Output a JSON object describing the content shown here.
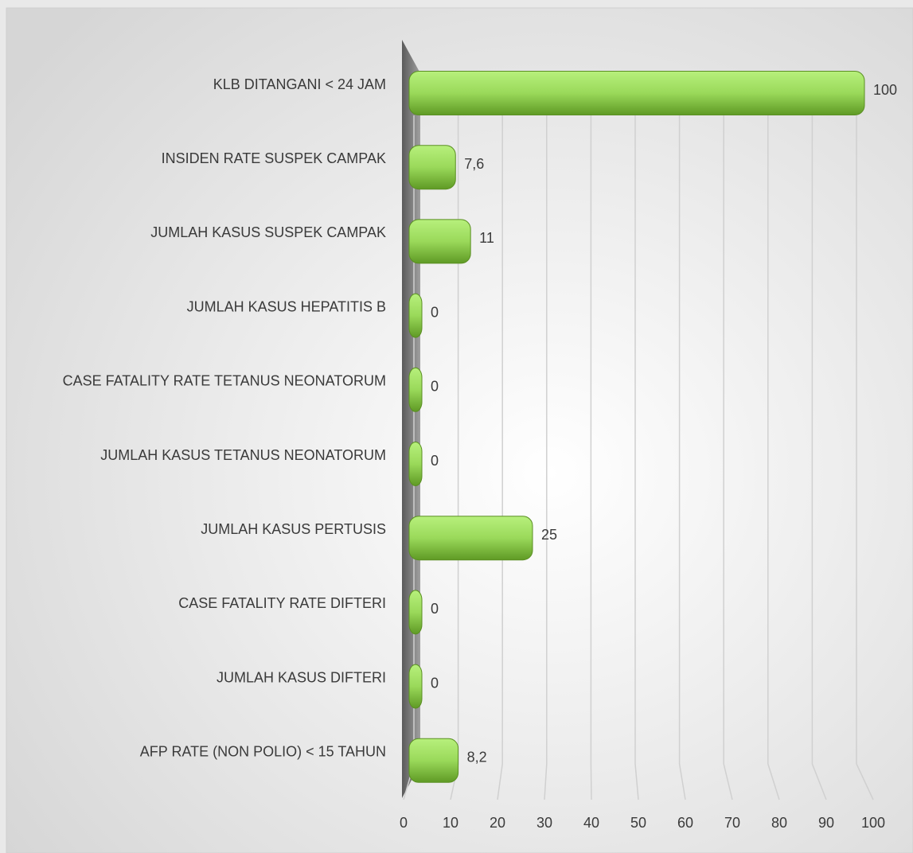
{
  "chart_data": {
    "type": "bar",
    "orientation": "horizontal",
    "categories": [
      "KLB DITANGANI < 24 JAM",
      "INSIDEN RATE SUSPEK CAMPAK",
      "JUMLAH KASUS SUSPEK CAMPAK",
      "JUMLAH KASUS HEPATITIS B",
      "CASE FATALITY RATE TETANUS NEONATORUM",
      "JUMLAH KASUS TETANUS NEONATORUM",
      "JUMLAH KASUS PERTUSIS",
      "CASE FATALITY RATE DIFTERI",
      "JUMLAH KASUS DIFTERI",
      "AFP RATE (NON POLIO) < 15 TAHUN"
    ],
    "values": [
      100,
      7.6,
      11,
      0,
      0,
      0,
      25,
      0,
      0,
      8.2
    ],
    "value_labels": [
      "100",
      "7,6",
      "11",
      "0",
      "0",
      "0",
      "25",
      "0",
      "0",
      "8,2"
    ],
    "color": "#8fd14f",
    "xlim": [
      0,
      100
    ],
    "xticks": [
      0,
      10,
      20,
      30,
      40,
      50,
      60,
      70,
      80,
      90,
      100
    ],
    "grid": true
  }
}
